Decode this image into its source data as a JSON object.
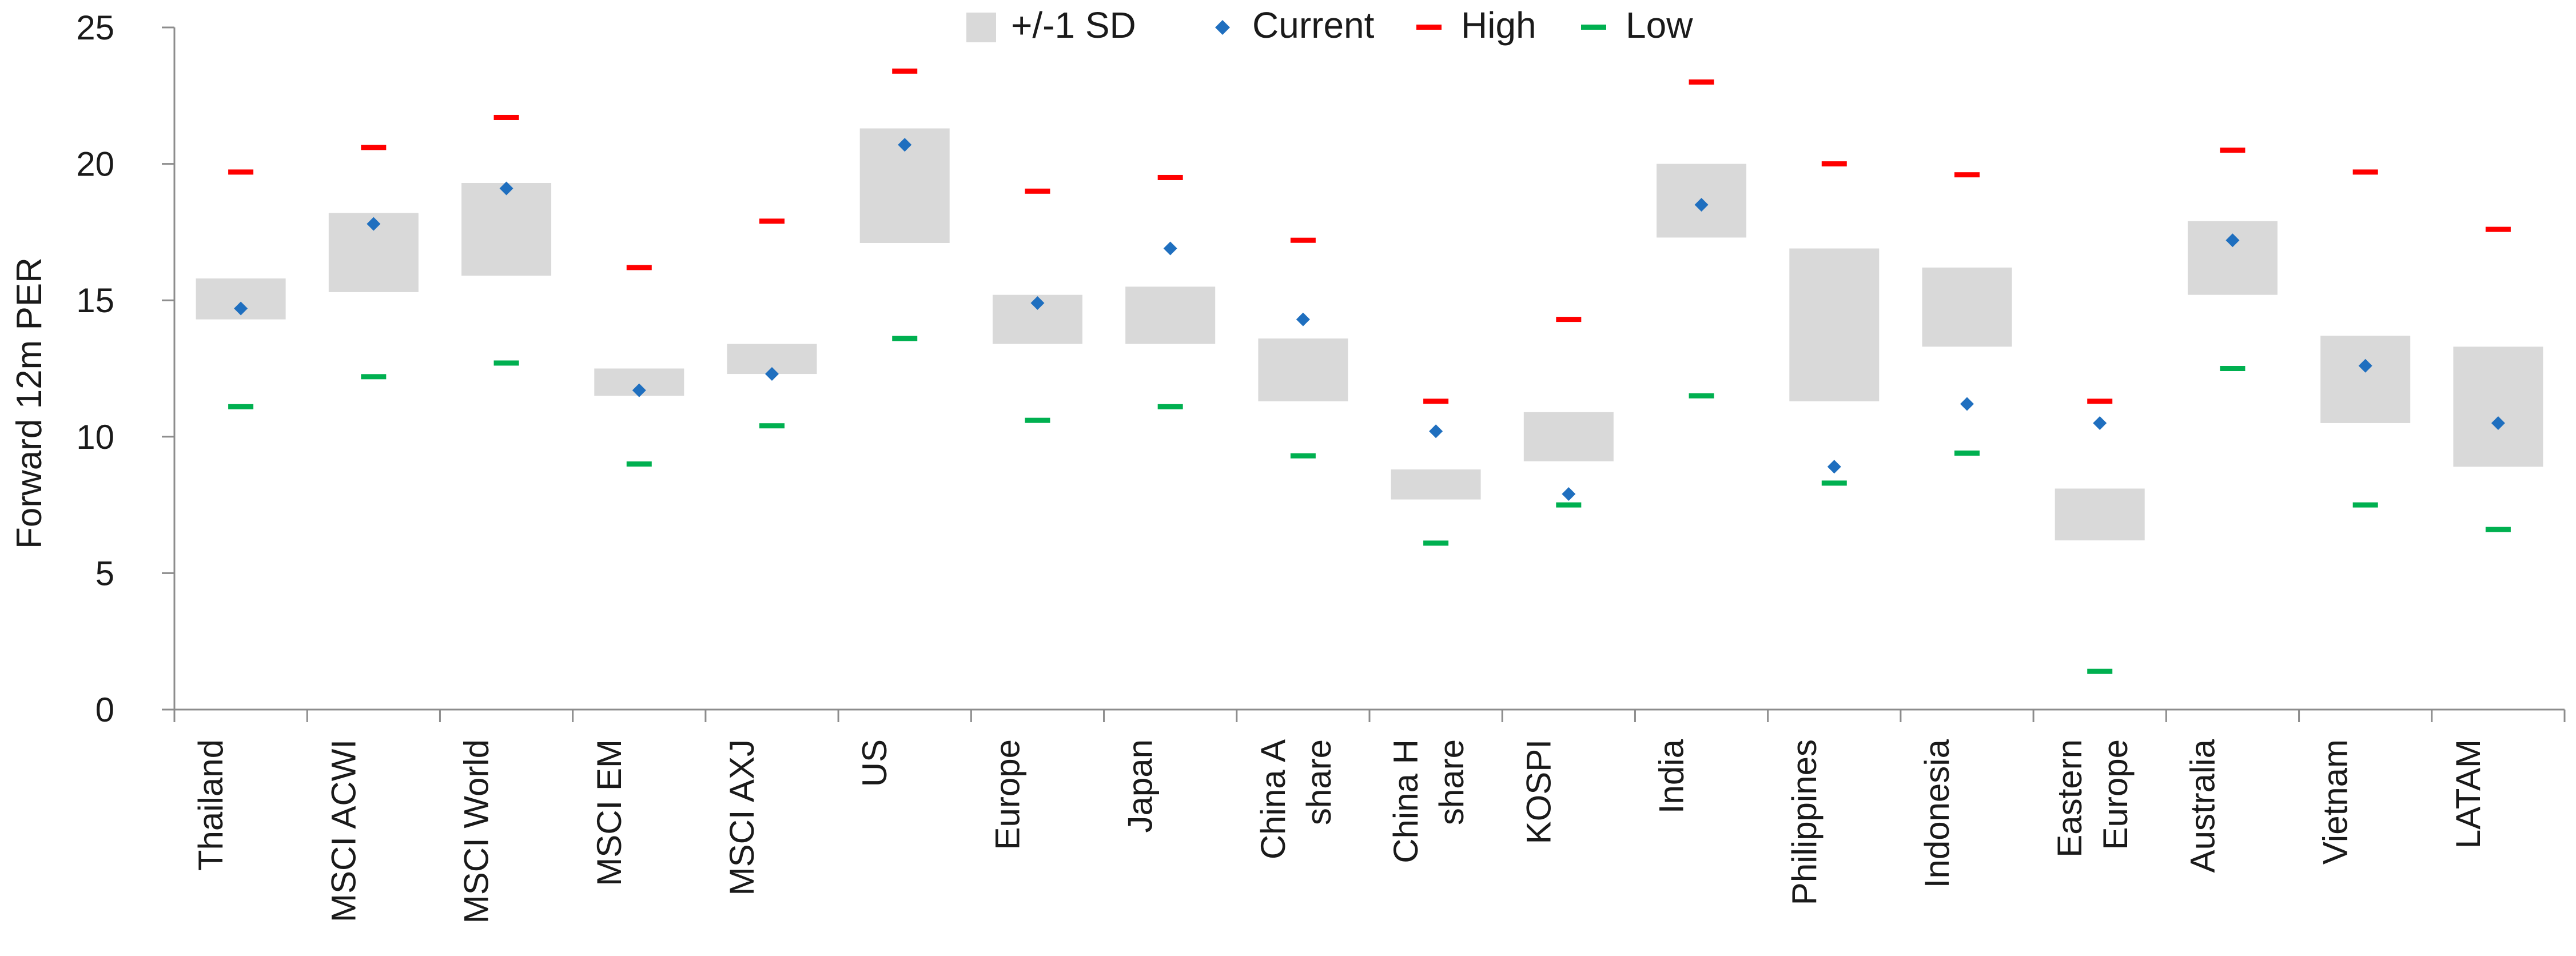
{
  "chart_data": {
    "type": "range",
    "ylabel": "Forward 12m PER",
    "ylim": [
      0,
      25
    ],
    "yticks": [
      0,
      5,
      10,
      15,
      20,
      25
    ],
    "legend": [
      {
        "key": "sd",
        "label": "+/-1 SD",
        "color": "#d9d9d9"
      },
      {
        "key": "current",
        "label": "Current",
        "color": "#1f6fbf"
      },
      {
        "key": "high",
        "label": "High",
        "color": "#ff0000"
      },
      {
        "key": "low",
        "label": "Low",
        "color": "#00b050"
      }
    ],
    "categories": [
      {
        "lines": [
          "Thailand"
        ],
        "sd_low": 14.3,
        "sd_high": 15.8,
        "current": 14.7,
        "high": 19.7,
        "low": 11.1
      },
      {
        "lines": [
          "MSCI ACWI"
        ],
        "sd_low": 15.3,
        "sd_high": 18.2,
        "current": 17.8,
        "high": 20.6,
        "low": 12.2
      },
      {
        "lines": [
          "MSCI World"
        ],
        "sd_low": 15.9,
        "sd_high": 19.3,
        "current": 19.1,
        "high": 21.7,
        "low": 12.7
      },
      {
        "lines": [
          "MSCI EM"
        ],
        "sd_low": 11.5,
        "sd_high": 12.5,
        "current": 11.7,
        "high": 16.2,
        "low": 9.0
      },
      {
        "lines": [
          "MSCI AXJ"
        ],
        "sd_low": 12.3,
        "sd_high": 13.4,
        "current": 12.3,
        "high": 17.9,
        "low": 10.4
      },
      {
        "lines": [
          "US"
        ],
        "sd_low": 17.1,
        "sd_high": 21.3,
        "current": 20.7,
        "high": 23.4,
        "low": 13.6
      },
      {
        "lines": [
          "Europe"
        ],
        "sd_low": 13.4,
        "sd_high": 15.2,
        "current": 14.9,
        "high": 19.0,
        "low": 10.6
      },
      {
        "lines": [
          "Japan"
        ],
        "sd_low": 13.4,
        "sd_high": 15.5,
        "current": 16.9,
        "high": 19.5,
        "low": 11.1
      },
      {
        "lines": [
          "China A",
          "share"
        ],
        "sd_low": 11.3,
        "sd_high": 13.6,
        "current": 14.3,
        "high": 17.2,
        "low": 9.3
      },
      {
        "lines": [
          "China H",
          "share"
        ],
        "sd_low": 7.7,
        "sd_high": 8.8,
        "current": 10.2,
        "high": 11.3,
        "low": 6.1
      },
      {
        "lines": [
          "KOSPI"
        ],
        "sd_low": 9.1,
        "sd_high": 10.9,
        "current": 7.9,
        "high": 14.3,
        "low": 7.5
      },
      {
        "lines": [
          "India"
        ],
        "sd_low": 17.3,
        "sd_high": 20.0,
        "current": 18.5,
        "high": 23.0,
        "low": 11.5
      },
      {
        "lines": [
          "Philippines"
        ],
        "sd_low": 11.3,
        "sd_high": 16.9,
        "current": 8.9,
        "high": 20.0,
        "low": 8.3
      },
      {
        "lines": [
          "Indonesia"
        ],
        "sd_low": 13.3,
        "sd_high": 16.2,
        "current": 11.2,
        "high": 19.6,
        "low": 9.4
      },
      {
        "lines": [
          "Eastern",
          "Europe"
        ],
        "sd_low": 6.2,
        "sd_high": 8.1,
        "current": 10.5,
        "high": 11.3,
        "low": 1.4
      },
      {
        "lines": [
          "Australia"
        ],
        "sd_low": 15.2,
        "sd_high": 17.9,
        "current": 17.2,
        "high": 20.5,
        "low": 12.5
      },
      {
        "lines": [
          "Vietnam"
        ],
        "sd_low": 10.5,
        "sd_high": 13.7,
        "current": 12.6,
        "high": 19.7,
        "low": 7.5
      },
      {
        "lines": [
          "LATAM"
        ],
        "sd_low": 8.9,
        "sd_high": 13.3,
        "current": 10.5,
        "high": 17.6,
        "low": 6.6
      }
    ]
  }
}
